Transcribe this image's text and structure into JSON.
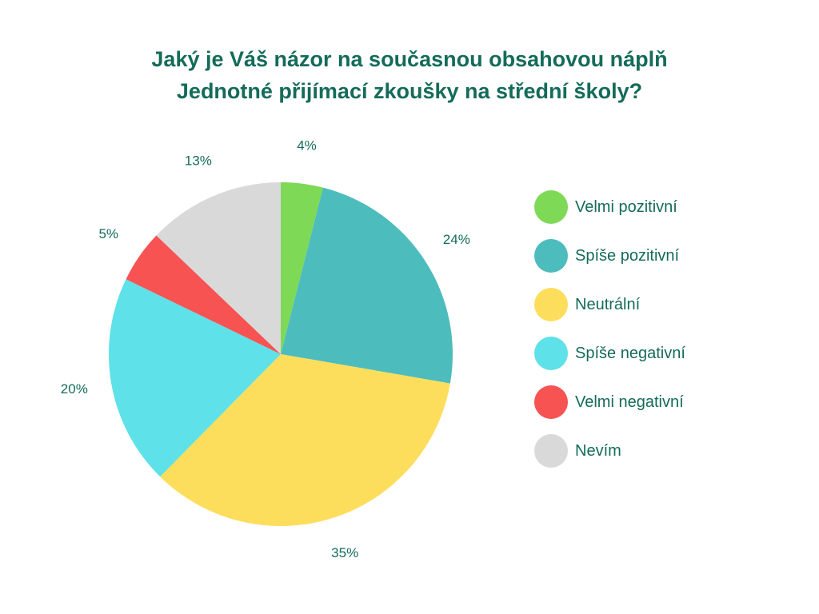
{
  "chart_data": {
    "type": "pie",
    "title_lines": [
      "Jaký je Váš názor na současnou obsahovou náplň",
      "Jednotné přijímací zkoušky na střední školy?"
    ],
    "slices": [
      {
        "name": "Velmi pozitivní",
        "value": 4,
        "label": "4%",
        "color": "#7ed957"
      },
      {
        "name": "Spíše pozitivní",
        "value": 24,
        "label": "24%",
        "color": "#4dbcbc"
      },
      {
        "name": "Neutrální",
        "value": 35,
        "label": "35%",
        "color": "#fdde5c"
      },
      {
        "name": "Spíše negativní",
        "value": 20,
        "label": "20%",
        "color": "#5ee1e8"
      },
      {
        "name": "Velmi negativní",
        "value": 5,
        "label": "5%",
        "color": "#f75353"
      },
      {
        "name": "Nevím",
        "value": 13,
        "label": "13%",
        "color": "#d9d9d9"
      }
    ],
    "start": "top",
    "direction": "clockwise",
    "legend_position": "right"
  }
}
